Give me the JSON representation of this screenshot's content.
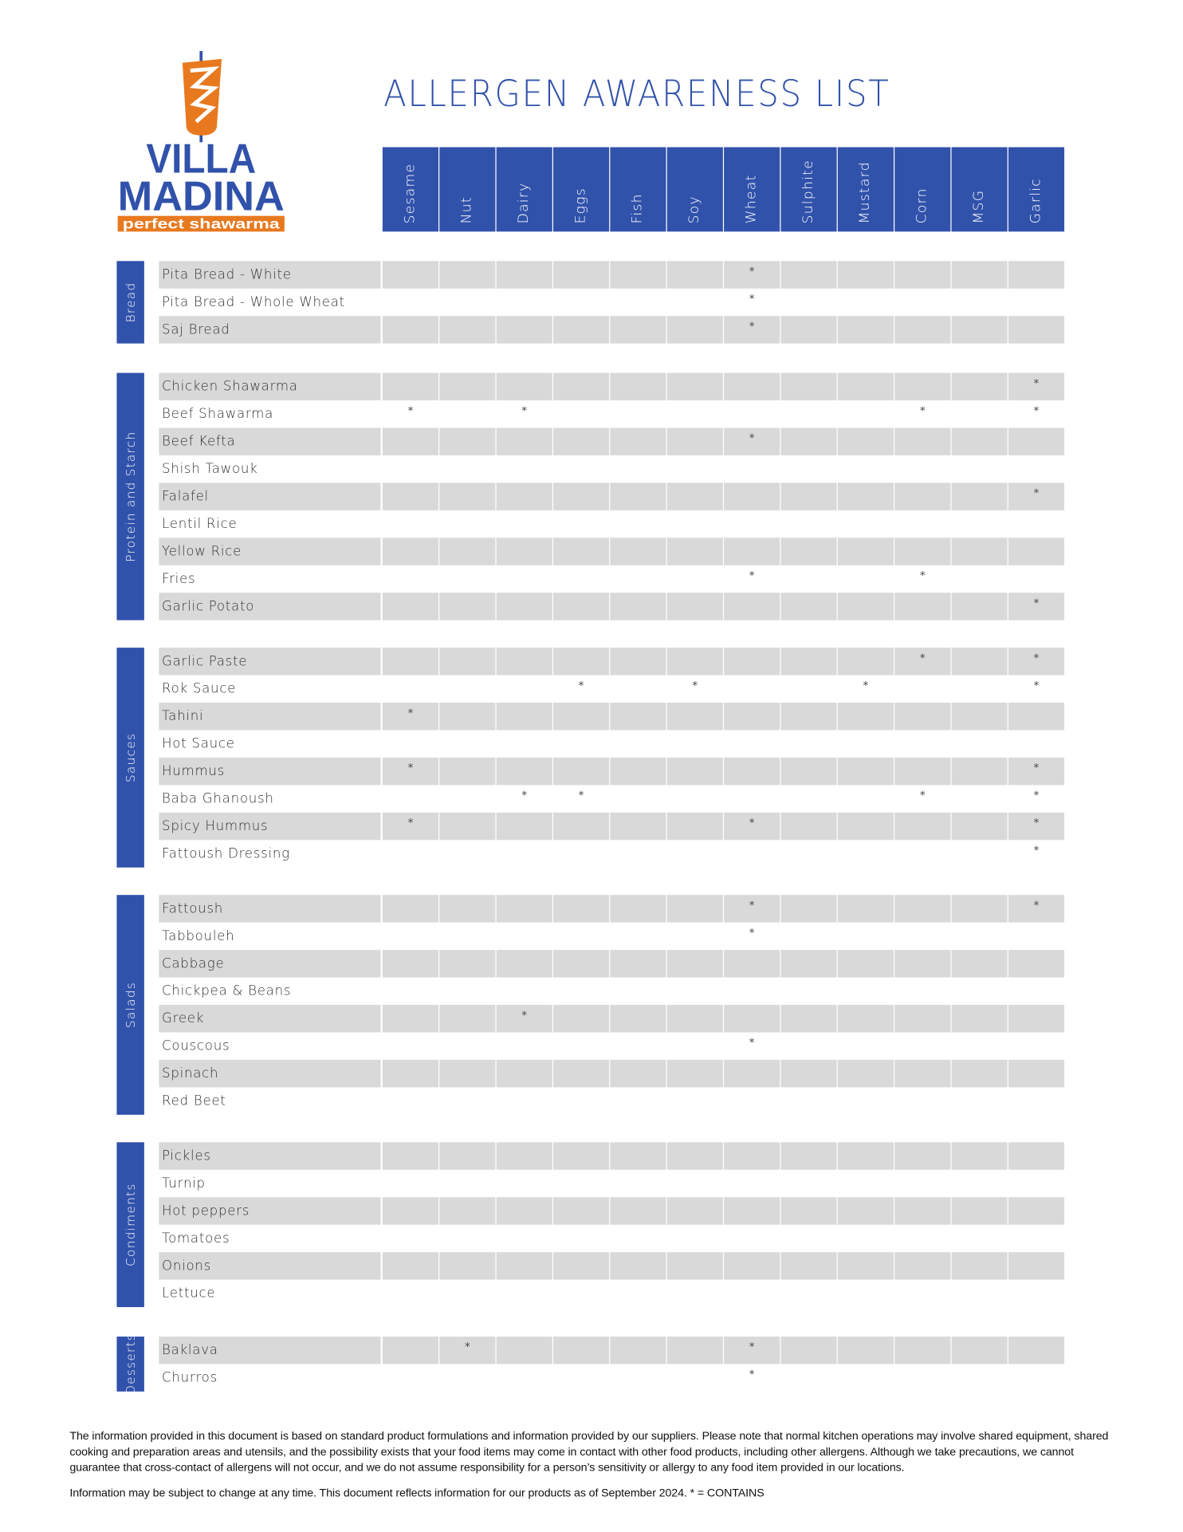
{
  "brand": {
    "name_line1": "VILLA",
    "name_line2": "MADINA",
    "tagline": "perfect shawarma",
    "blue": "#3152ab",
    "orange": "#e8791f"
  },
  "title": "ALLERGEN AWARENESS LIST",
  "allergens": [
    "Sesame",
    "Nut",
    "Dairy",
    "Eggs",
    "Fish",
    "Soy",
    "Wheat",
    "Sulphite",
    "Mustard",
    "Corn",
    "MSG",
    "Garlic"
  ],
  "mark_symbol": "*",
  "sections": [
    {
      "category": "Bread",
      "items": [
        {
          "name": "Pita Bread - White",
          "contains": [
            "Wheat"
          ]
        },
        {
          "name": "Pita Bread - Whole Wheat",
          "contains": [
            "Wheat"
          ]
        },
        {
          "name": "Saj Bread",
          "contains": [
            "Wheat"
          ]
        }
      ]
    },
    {
      "category": "Protein and Starch",
      "items": [
        {
          "name": "Chicken Shawarma",
          "contains": [
            "Garlic"
          ]
        },
        {
          "name": "Beef Shawarma",
          "contains": [
            "Sesame",
            "Dairy",
            "Corn",
            "Garlic"
          ]
        },
        {
          "name": "Beef Kefta",
          "contains": [
            "Wheat"
          ]
        },
        {
          "name": "Shish Tawouk",
          "contains": []
        },
        {
          "name": "Falafel",
          "contains": [
            "Garlic"
          ]
        },
        {
          "name": "Lentil Rice",
          "contains": []
        },
        {
          "name": "Yellow Rice",
          "contains": []
        },
        {
          "name": "Fries",
          "contains": [
            "Wheat",
            "Corn"
          ]
        },
        {
          "name": "Garlic Potato",
          "contains": [
            "Garlic"
          ]
        }
      ]
    },
    {
      "category": "Sauces",
      "items": [
        {
          "name": "Garlic Paste",
          "contains": [
            "Corn",
            "Garlic"
          ]
        },
        {
          "name": "Rok Sauce",
          "contains": [
            "Eggs",
            "Soy",
            "Mustard",
            "Garlic"
          ]
        },
        {
          "name": "Tahini",
          "contains": [
            "Sesame"
          ]
        },
        {
          "name": "Hot Sauce",
          "contains": []
        },
        {
          "name": "Hummus",
          "contains": [
            "Sesame",
            "Garlic"
          ]
        },
        {
          "name": "Baba Ghanoush",
          "contains": [
            "Dairy",
            "Eggs",
            "Corn",
            "Garlic"
          ]
        },
        {
          "name": "Spicy Hummus",
          "contains": [
            "Sesame",
            "Wheat",
            "Garlic"
          ]
        },
        {
          "name": "Fattoush Dressing",
          "contains": [
            "Garlic"
          ]
        }
      ]
    },
    {
      "category": "Salads",
      "items": [
        {
          "name": "Fattoush",
          "contains": [
            "Wheat",
            "Garlic"
          ]
        },
        {
          "name": "Tabbouleh",
          "contains": [
            "Wheat"
          ]
        },
        {
          "name": "Cabbage",
          "contains": []
        },
        {
          "name": "Chickpea & Beans",
          "contains": []
        },
        {
          "name": "Greek",
          "contains": [
            "Dairy"
          ]
        },
        {
          "name": "Couscous",
          "contains": [
            "Wheat"
          ]
        },
        {
          "name": "Spinach",
          "contains": []
        },
        {
          "name": "Red Beet",
          "contains": []
        }
      ]
    },
    {
      "category": "Condiments",
      "items": [
        {
          "name": "Pickles",
          "contains": []
        },
        {
          "name": "Turnip",
          "contains": []
        },
        {
          "name": "Hot peppers",
          "contains": []
        },
        {
          "name": "Tomatoes",
          "contains": []
        },
        {
          "name": "Onions",
          "contains": []
        },
        {
          "name": "Lettuce",
          "contains": []
        }
      ]
    },
    {
      "category": "Desserts",
      "items": [
        {
          "name": "Baklava",
          "contains": [
            "Nut",
            "Wheat"
          ]
        },
        {
          "name": "Churros",
          "contains": [
            "Wheat"
          ]
        }
      ]
    }
  ],
  "footer": {
    "disclaimer": "The information provided in this document is based on standard product formulations and information provided by our suppliers. Please note that normal kitchen operations may involve shared equipment, shared cooking and preparation areas and utensils, and the possibility exists that your food items may come in contact with other food products, including other allergens. Although we take precautions, we cannot guarantee that cross-contact of allergens will not occur, and we do not assume responsibility for a person’s sensitivity or allergy to any food item provided in our locations.",
    "note": "Information may be subject to change at any time. This document reflects information for our products as of September 2024.  * = CONTAINS"
  }
}
